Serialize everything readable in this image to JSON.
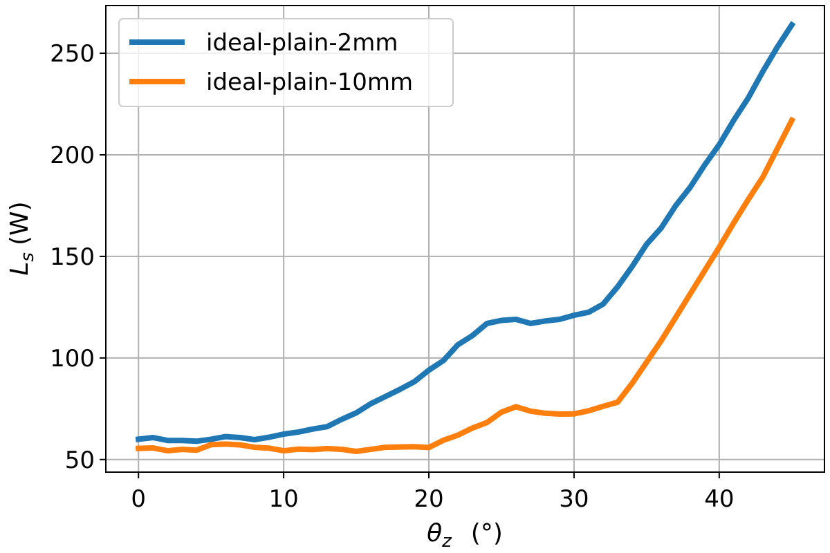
{
  "chart_data": {
    "type": "line",
    "xlabel": "θz (°)",
    "ylabel": "Ls (W)",
    "xlim": [
      -2.25,
      47.25
    ],
    "ylim": [
      43.8,
      273.5
    ],
    "xticks": [
      0,
      10,
      20,
      30,
      40
    ],
    "yticks": [
      50,
      100,
      150,
      200,
      250
    ],
    "grid": true,
    "legend_position": "top-left",
    "x": [
      0,
      1,
      2,
      3,
      4,
      5,
      6,
      7,
      8,
      9,
      10,
      11,
      12,
      13,
      14,
      15,
      16,
      17,
      18,
      19,
      20,
      21,
      22,
      23,
      24,
      25,
      26,
      27,
      28,
      29,
      30,
      31,
      32,
      33,
      34,
      35,
      36,
      37,
      38,
      39,
      40,
      41,
      42,
      43,
      44,
      45
    ],
    "series": [
      {
        "name": "ideal-plain-2mm",
        "color": "#1f77b4",
        "values": [
          60.0,
          60.8,
          59.4,
          59.4,
          59.0,
          60.0,
          61.3,
          60.8,
          59.8,
          61.0,
          62.5,
          63.5,
          65.0,
          66.2,
          69.8,
          73.0,
          77.5,
          81.0,
          84.5,
          88.3,
          94.0,
          98.7,
          106.5,
          111.0,
          117.0,
          118.5,
          119.0,
          117.0,
          118.2,
          119.0,
          121.0,
          122.5,
          126.5,
          135.0,
          145.0,
          156.0,
          164.0,
          175.0,
          184.0,
          195.0,
          205.0,
          217.0,
          228.0,
          241.0,
          253.0,
          264.0
        ]
      },
      {
        "name": "ideal-plain-10mm",
        "color": "#ff7f0e",
        "values": [
          55.5,
          55.7,
          54.3,
          55.0,
          54.6,
          57.3,
          57.6,
          57.2,
          56.0,
          55.6,
          54.3,
          55.1,
          54.9,
          55.4,
          55.0,
          54.0,
          55.0,
          56.0,
          56.2,
          56.3,
          55.9,
          59.5,
          62.0,
          65.5,
          68.2,
          73.3,
          76.0,
          73.8,
          72.8,
          72.4,
          72.5,
          74.0,
          76.2,
          78.2,
          87.5,
          98.0,
          108.5,
          120.0,
          131.5,
          143.0,
          154.5,
          166.5,
          178.0,
          189.0,
          203.0,
          217.0
        ]
      }
    ]
  },
  "axes": {
    "xlabel_main": "θ",
    "xlabel_sub": "z",
    "xlabel_unit": "(°)",
    "ylabel_main": "L",
    "ylabel_sub": "s",
    "ylabel_unit": "(W)",
    "xtick_labels": [
      "0",
      "10",
      "20",
      "30",
      "40"
    ],
    "ytick_labels": [
      "50",
      "100",
      "150",
      "200",
      "250"
    ]
  },
  "legend": {
    "items": [
      "ideal-plain-2mm",
      "ideal-plain-10mm"
    ]
  }
}
